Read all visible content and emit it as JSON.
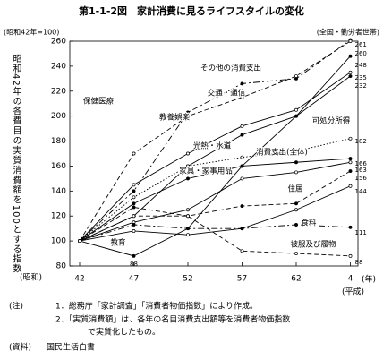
{
  "chart_data": {
    "type": "line",
    "title": "第1-1-2図　家計消費に見るライフスタイルの変化",
    "y_unit": "(昭和42年=100)",
    "subtitle": "(全国・勤労者世帯)",
    "y_label": "昭和42年の各費目の実質消費額を100とする指数",
    "x_era_start": "(昭和)",
    "x_unit": "(年)",
    "x_era_end": "(平成)",
    "categories": [
      "42",
      "47",
      "52",
      "57",
      "62",
      "4"
    ],
    "ylim": [
      80,
      260
    ],
    "yticks": [
      80,
      100,
      120,
      140,
      160,
      180,
      200,
      220,
      240,
      260
    ],
    "series": [
      {
        "name": "その他の消費支出",
        "color": "#000000",
        "dash": "dashdot",
        "values": [
          100,
          140,
          203,
          226,
          230,
          261
        ]
      },
      {
        "name": "保健医療",
        "color": "#000000",
        "dash": "dashed",
        "values": [
          100,
          170,
          200,
          215,
          232,
          260
        ]
      },
      {
        "name": "教育",
        "color": "#000000",
        "dash": "solid",
        "values": [
          100,
          88,
          110,
          160,
          200,
          248
        ]
      },
      {
        "name": "教養娯楽",
        "color": "#000000",
        "dash": "solid",
        "values": [
          100,
          145,
          170,
          192,
          205,
          235
        ]
      },
      {
        "name": "交通・通信",
        "color": "#000000",
        "dash": "solid",
        "values": [
          100,
          120,
          160,
          185,
          200,
          232
        ]
      },
      {
        "name": "可処分所得",
        "color": "#000000",
        "dash": "dotted",
        "values": [
          100,
          135,
          160,
          167,
          172,
          182
        ]
      },
      {
        "name": "消費支出(全体)",
        "color": "#000000",
        "dash": "solid",
        "values": [
          100,
          130,
          150,
          160,
          163,
          166
        ]
      },
      {
        "name": "光熱・水道",
        "color": "#000000",
        "dash": "solid",
        "values": [
          100,
          115,
          125,
          150,
          155,
          163
        ]
      },
      {
        "name": "家具・家事用品",
        "color": "#000000",
        "dash": "dashed",
        "values": [
          100,
          127,
          120,
          128,
          130,
          156
        ]
      },
      {
        "name": "住居",
        "color": "#000000",
        "dash": "solid",
        "values": [
          100,
          108,
          105,
          110,
          125,
          144
        ]
      },
      {
        "name": "食料",
        "color": "#000000",
        "dash": "dashdot",
        "values": [
          100,
          113,
          110,
          110,
          113,
          111
        ]
      },
      {
        "name": "被服及び履物",
        "color": "#000000",
        "dash": "dashed",
        "values": [
          100,
          120,
          120,
          92,
          90,
          88
        ]
      }
    ],
    "notes": {
      "label": "(注)",
      "items": [
        "1．総務庁「家計調査」「消費者物価指数」により作成。",
        "2．「実質消費額」は、各年の名目消費支出額等を消費者物価指数",
        "で実質化したもの。"
      ],
      "source_label": "(資料)",
      "source": "国民生活白書"
    }
  }
}
